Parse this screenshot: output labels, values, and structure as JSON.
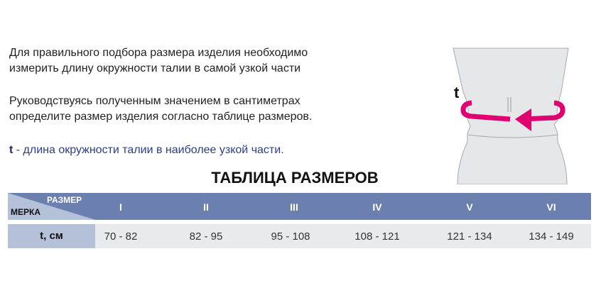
{
  "instructions": {
    "line1": "Для правильного подбора размера изделия необходимо",
    "line2": "измерить длину окружности талии в самой узкой части",
    "line3": "Руководствуясь полученным значением в сантиметрах",
    "line4": "определите размер изделия согласно таблице размеров.",
    "legend_symbol": "t",
    "legend_text": " - длина окружности талии в наиболее узкой части."
  },
  "figure": {
    "label": "t",
    "arrow_color": "#e0006f"
  },
  "table": {
    "title": "ТАБЛИЦА РАЗМЕРОВ",
    "corner_top": "РАЗМЕР",
    "corner_bottom": "МЕРКА",
    "sizes": [
      "I",
      "II",
      "III",
      "IV",
      "V",
      "VI"
    ],
    "row_label": "t, см",
    "values": [
      "70 - 82",
      "82 - 95",
      "95 - 108",
      "108 - 121",
      "121 - 134",
      "134 - 149"
    ],
    "header_color": "#6b80ae"
  }
}
